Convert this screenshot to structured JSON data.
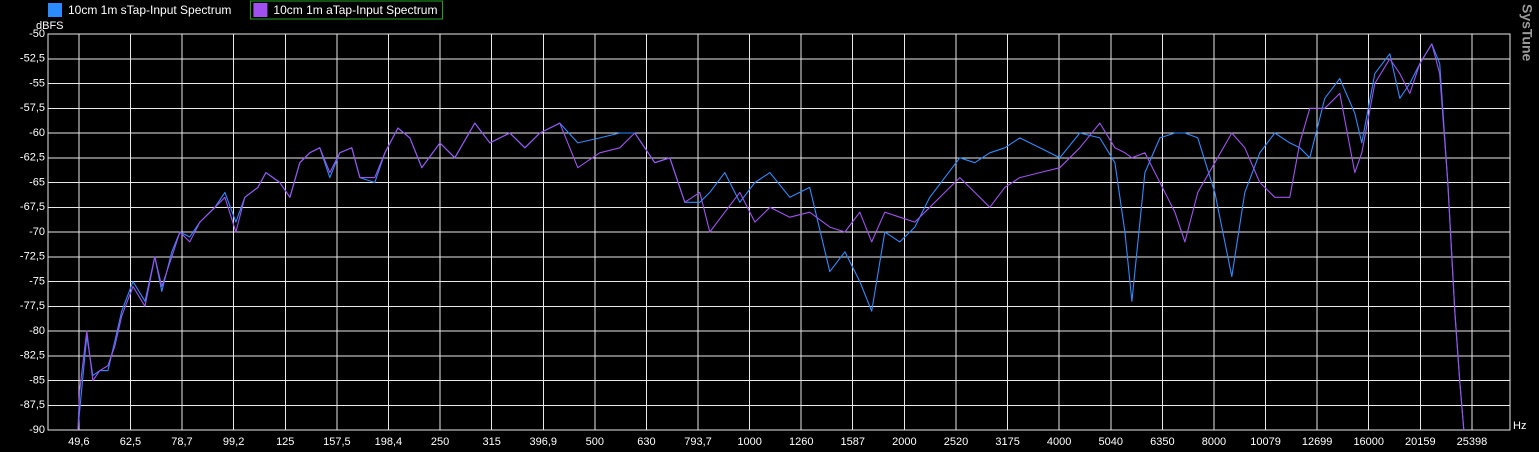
{
  "chart_data": {
    "type": "line",
    "legend": "top-left",
    "grid": true,
    "xscale": "log",
    "y_unit": "dBFS",
    "x_unit": "Hz",
    "watermark": "SysTune",
    "xlim": [
      43.2,
      30120
    ],
    "ylim": [
      -90,
      -50
    ],
    "yticks": [
      -50,
      {
        "value": -52.5,
        "label": "-52,5"
      },
      -55,
      {
        "value": -57.5,
        "label": "-57,5"
      },
      -60,
      {
        "value": -62.5,
        "label": "-62,5"
      },
      -65,
      {
        "value": -67.5,
        "label": "-67,5"
      },
      -70,
      {
        "value": -72.5,
        "label": "-72,5"
      },
      -75,
      {
        "value": -77.5,
        "label": "-77,5"
      },
      -80,
      {
        "value": -82.5,
        "label": "-82,5"
      },
      -85,
      {
        "value": -87.5,
        "label": "-87,5"
      },
      -90
    ],
    "xticks": [
      {
        "value": 49.6,
        "label": "49,6"
      },
      {
        "value": 62.5,
        "label": "62,5"
      },
      {
        "value": 78.7,
        "label": "78,7"
      },
      {
        "value": 99.2,
        "label": "99,2"
      },
      125,
      {
        "value": 157.5,
        "label": "157,5"
      },
      {
        "value": 198.4,
        "label": "198,4"
      },
      250,
      315,
      {
        "value": 396.9,
        "label": "396,9"
      },
      500,
      630,
      {
        "value": 793.7,
        "label": "793,7"
      },
      1000,
      1260,
      1587,
      2000,
      2520,
      3175,
      4000,
      5040,
      6350,
      8000,
      10079,
      12699,
      16000,
      20159,
      25398
    ],
    "x": [
      49.4,
      49.8,
      51.4,
      52.8,
      54.5,
      56.5,
      58.3,
      60.1,
      63.2,
      66.7,
      69.7,
      71.9,
      75.2,
      78.0,
      81.5,
      85.3,
      91.2,
      95.4,
      100.2,
      104.3,
      110.6,
      114.6,
      122.0,
      127.6,
      133.4,
      139.5,
      145.9,
      152.6,
      159.6,
      168.4,
      174.6,
      186.7,
      195.3,
      207.0,
      218.4,
      230.4,
      249.8,
      267.1,
      292.1,
      312.5,
      341.7,
      365.5,
      390.9,
      427.5,
      463.4,
      511.3,
      559.2,
      598.1,
      654.1,
      699.6,
      748.2,
      800.2,
      836.8,
      895.0,
      957.2,
      1024,
      1095,
      1197,
      1309,
      1432,
      1532,
      1638,
      1728,
      1832,
      1959,
      2095,
      2241,
      2397,
      2563,
      2741,
      2932,
      3136,
      3353,
      3668,
      4012,
      4388,
      4798,
      5133,
      5368,
      5540,
      5873,
      6281,
      6717,
      7024,
      7442,
      8031,
      8667,
      9185,
      9824,
      10506,
      11236,
      11750,
      12288,
      13141,
      14055,
      15030,
      15511,
      16440,
      17584,
      18390,
      19230,
      20110,
      21220,
      21990,
      22800,
      23520,
      24050,
      24490
    ],
    "series": [
      {
        "name": "10cm 1m sTap-Input Spectrum",
        "color": "#2a8cff",
        "values": [
          -90,
          -88,
          -80.5,
          -84.5,
          -84,
          -84,
          -81,
          -78,
          -75,
          -77,
          -72.5,
          -76,
          -72,
          -70,
          -70.5,
          -69,
          -67.5,
          -66,
          -69,
          -66.5,
          -65.5,
          -64,
          -65,
          -66.5,
          -63,
          -62,
          -61.5,
          -64.5,
          -62,
          -61.5,
          -64.5,
          -65,
          -62,
          -59.5,
          -60.5,
          -63.5,
          -61,
          -62.5,
          -59,
          -61,
          -60,
          -61.5,
          -60,
          -59,
          -61,
          -60.5,
          -60,
          -60,
          -63,
          -62.5,
          -67,
          -67,
          -66,
          -64,
          -67,
          -65,
          -64,
          -66.5,
          -65.5,
          -74,
          -72,
          -75,
          -78,
          -70,
          -71,
          -69.5,
          -66.5,
          -64.5,
          -62.5,
          -63,
          -62,
          -61.5,
          -60.5,
          -61.5,
          -62.5,
          -60,
          -60.5,
          -63,
          -70,
          -77,
          -64,
          -60.5,
          -60,
          -60,
          -60.5,
          -66,
          -74.5,
          -66,
          -62,
          -60,
          -61,
          -61.5,
          -62.5,
          -56.5,
          -54.5,
          -58,
          -61,
          -54,
          -52,
          -56.5,
          -55,
          -53,
          -51,
          -53,
          -65,
          -78,
          -85,
          -90
        ]
      },
      {
        "name": "10cm 1m aTap-Input Spectrum",
        "color": "#a050f0",
        "values": [
          -90,
          -86,
          -80,
          -85,
          -84,
          -83.5,
          -81.5,
          -78.5,
          -75.5,
          -77.5,
          -72.5,
          -75.5,
          -72.5,
          -70,
          -71,
          -69,
          -67.5,
          -66.5,
          -70,
          -66.5,
          -65.5,
          -64,
          -65,
          -66.5,
          -63,
          -62,
          -61.5,
          -64,
          -62,
          -61.5,
          -64.5,
          -64.5,
          -62,
          -59.5,
          -60.5,
          -63.5,
          -61,
          -62.5,
          -59,
          -61,
          -60,
          -61.5,
          -60,
          -59,
          -63.5,
          -62,
          -61.5,
          -60,
          -63,
          -62.5,
          -67,
          -66,
          -70,
          -68,
          -66,
          -69,
          -67.5,
          -68.5,
          -68,
          -69.5,
          -70,
          -68,
          -71,
          -68,
          -68.5,
          -69,
          -67.5,
          -66,
          -64.5,
          -66,
          -67.5,
          -65.5,
          -64.5,
          -64,
          -63.5,
          -61.5,
          -59,
          -61.5,
          -62,
          -62.5,
          -62,
          -65,
          -68,
          -71,
          -66,
          -63,
          -60,
          -61.5,
          -65,
          -66.5,
          -66.5,
          -61,
          -57.5,
          -57.5,
          -56,
          -64,
          -62,
          -55,
          -52.5,
          -54,
          -56,
          -53,
          -51,
          -54,
          -65,
          -78,
          -85,
          -90
        ]
      }
    ]
  }
}
